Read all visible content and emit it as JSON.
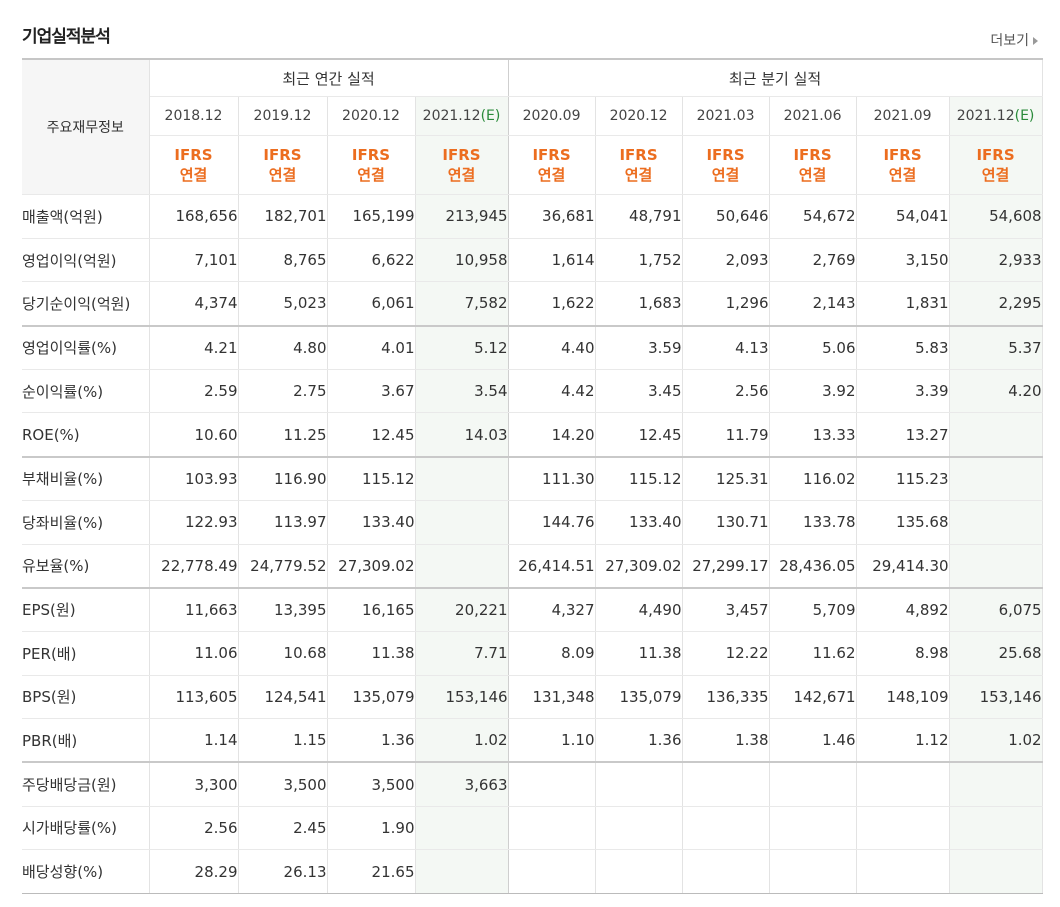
{
  "section_title": "기업실적분석",
  "more_link": "더보기",
  "header": {
    "row_label": "주요재무정보",
    "annual_group": "최근 연간 실적",
    "quarter_group": "최근 분기 실적",
    "periods": [
      {
        "date": "2018.12",
        "est": ""
      },
      {
        "date": "2019.12",
        "est": ""
      },
      {
        "date": "2020.12",
        "est": ""
      },
      {
        "date": "2021.12",
        "est": "(E)"
      },
      {
        "date": "2020.09",
        "est": ""
      },
      {
        "date": "2020.12",
        "est": ""
      },
      {
        "date": "2021.03",
        "est": ""
      },
      {
        "date": "2021.06",
        "est": ""
      },
      {
        "date": "2021.09",
        "est": ""
      },
      {
        "date": "2021.12",
        "est": "(E)"
      }
    ],
    "ifrs_line1": "IFRS",
    "ifrs_line2": "연결"
  },
  "rows": [
    {
      "label": "매출액(억원)",
      "values": [
        "168,656",
        "182,701",
        "165,199",
        "213,945",
        "36,681",
        "48,791",
        "50,646",
        "54,672",
        "54,041",
        "54,608"
      ]
    },
    {
      "label": "영업이익(억원)",
      "values": [
        "7,101",
        "8,765",
        "6,622",
        "10,958",
        "1,614",
        "1,752",
        "2,093",
        "2,769",
        "3,150",
        "2,933"
      ]
    },
    {
      "label": "당기순이익(억원)",
      "values": [
        "4,374",
        "5,023",
        "6,061",
        "7,582",
        "1,622",
        "1,683",
        "1,296",
        "2,143",
        "1,831",
        "2,295"
      ]
    },
    {
      "label": "영업이익률(%)",
      "values": [
        "4.21",
        "4.80",
        "4.01",
        "5.12",
        "4.40",
        "3.59",
        "4.13",
        "5.06",
        "5.83",
        "5.37"
      ]
    },
    {
      "label": "순이익률(%)",
      "values": [
        "2.59",
        "2.75",
        "3.67",
        "3.54",
        "4.42",
        "3.45",
        "2.56",
        "3.92",
        "3.39",
        "4.20"
      ]
    },
    {
      "label": "ROE(%)",
      "values": [
        "10.60",
        "11.25",
        "12.45",
        "14.03",
        "14.20",
        "12.45",
        "11.79",
        "13.33",
        "13.27",
        ""
      ]
    },
    {
      "label": "부채비율(%)",
      "values": [
        "103.93",
        "116.90",
        "115.12",
        "",
        "111.30",
        "115.12",
        "125.31",
        "116.02",
        "115.23",
        ""
      ]
    },
    {
      "label": "당좌비율(%)",
      "values": [
        "122.93",
        "113.97",
        "133.40",
        "",
        "144.76",
        "133.40",
        "130.71",
        "133.78",
        "135.68",
        ""
      ]
    },
    {
      "label": "유보율(%)",
      "values": [
        "22,778.49",
        "24,779.52",
        "27,309.02",
        "",
        "26,414.51",
        "27,309.02",
        "27,299.17",
        "28,436.05",
        "29,414.30",
        ""
      ]
    },
    {
      "label": "EPS(원)",
      "values": [
        "11,663",
        "13,395",
        "16,165",
        "20,221",
        "4,327",
        "4,490",
        "3,457",
        "5,709",
        "4,892",
        "6,075"
      ]
    },
    {
      "label": "PER(배)",
      "values": [
        "11.06",
        "10.68",
        "11.38",
        "7.71",
        "8.09",
        "11.38",
        "12.22",
        "11.62",
        "8.98",
        "25.68"
      ]
    },
    {
      "label": "BPS(원)",
      "values": [
        "113,605",
        "124,541",
        "135,079",
        "153,146",
        "131,348",
        "135,079",
        "136,335",
        "142,671",
        "148,109",
        "153,146"
      ]
    },
    {
      "label": "PBR(배)",
      "values": [
        "1.14",
        "1.15",
        "1.36",
        "1.02",
        "1.10",
        "1.36",
        "1.38",
        "1.46",
        "1.12",
        "1.02"
      ]
    },
    {
      "label": "주당배당금(원)",
      "values": [
        "3,300",
        "3,500",
        "3,500",
        "3,663",
        "",
        "",
        "",
        "",
        "",
        ""
      ]
    },
    {
      "label": "시가배당률(%)",
      "values": [
        "2.56",
        "2.45",
        "1.90",
        "",
        "",
        "",
        "",
        "",
        "",
        ""
      ]
    },
    {
      "label": "배당성향(%)",
      "values": [
        "28.29",
        "26.13",
        "21.65",
        "",
        "",
        "",
        "",
        "",
        "",
        ""
      ]
    }
  ]
}
